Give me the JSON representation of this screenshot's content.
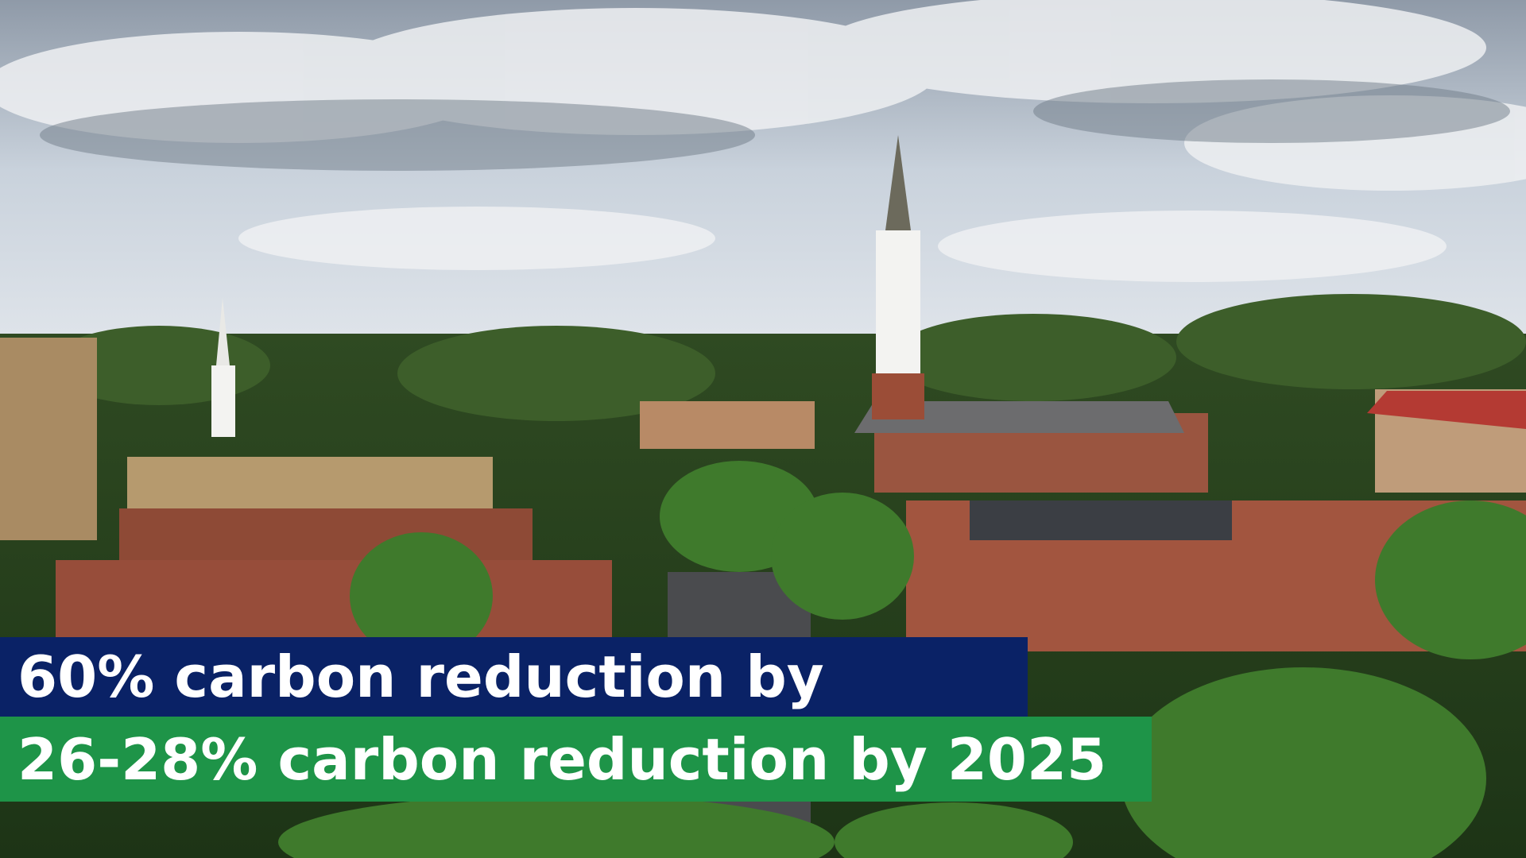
{
  "captions": {
    "line1": "60% carbon reduction by",
    "line2": "26-28% carbon reduction by 2025"
  }
}
